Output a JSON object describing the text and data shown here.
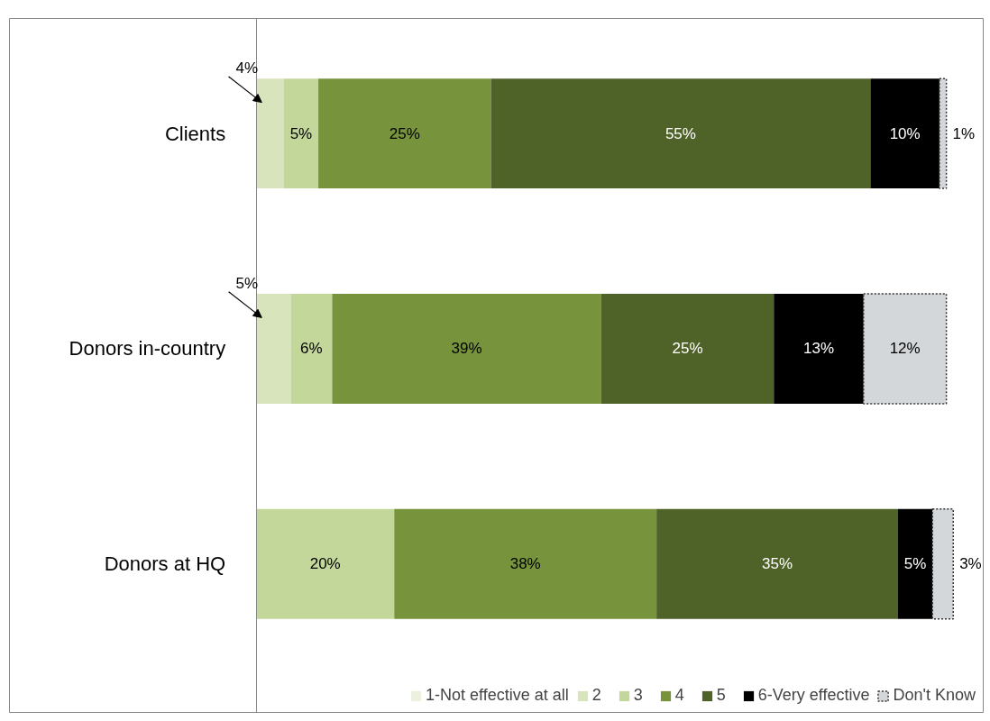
{
  "chart_data": {
    "type": "bar",
    "orientation": "horizontal",
    "stacked": true,
    "legend": "bottom",
    "grid": false,
    "categories": [
      "Clients",
      "Donors in-country",
      "Donors at HQ"
    ],
    "series": [
      {
        "name": "1-Not effective at all",
        "color": "#ebf1de",
        "values": [
          null,
          null,
          null
        ],
        "value_labels": [
          null,
          null,
          null
        ]
      },
      {
        "name": "2",
        "color": "#d8e4bc",
        "values": [
          4,
          5,
          null
        ],
        "value_labels": [
          "4%",
          "5%",
          null
        ]
      },
      {
        "name": "3",
        "color": "#c4d79b",
        "values": [
          5,
          6,
          20
        ],
        "value_labels": [
          "5%",
          "6%",
          "20%"
        ]
      },
      {
        "name": "4",
        "color": "#77933c",
        "values": [
          25,
          39,
          38
        ],
        "value_labels": [
          "25%",
          "39%",
          "38%"
        ]
      },
      {
        "name": "5",
        "color": "#4f6228",
        "values": [
          55,
          25,
          35
        ],
        "value_labels": [
          "55%",
          "25%",
          "35%"
        ]
      },
      {
        "name": "6-Very effective",
        "color": "#000000",
        "values": [
          10,
          13,
          5
        ],
        "value_labels": [
          "10%",
          "13%",
          "5%"
        ]
      },
      {
        "name": "Don't Know",
        "color": "#d4d7da",
        "values": [
          1,
          12,
          3
        ],
        "value_labels": [
          "1%",
          "12%",
          "3%"
        ]
      }
    ]
  }
}
